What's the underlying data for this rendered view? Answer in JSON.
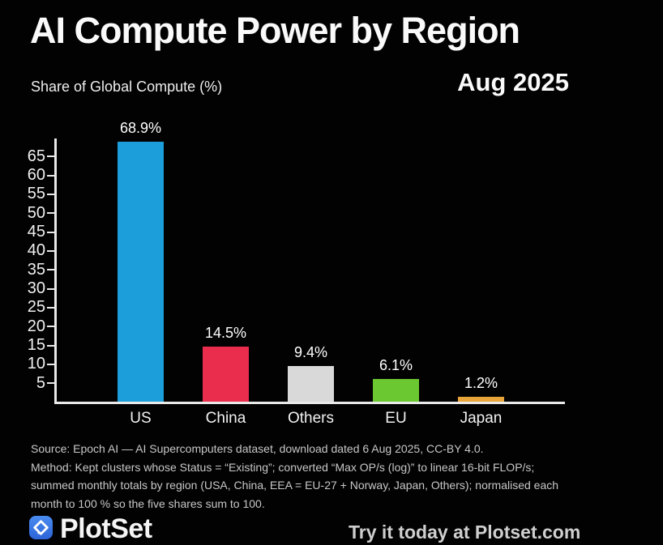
{
  "header": {
    "title": "AI Compute Power by Region",
    "subtitle": "Share of Global Compute (%)",
    "date_label": "Aug 2025"
  },
  "chart_data": {
    "type": "bar",
    "title": "AI Compute Power by Region",
    "subtitle": "Share of Global Compute (%)",
    "xlabel": "",
    "ylabel": "Share of Global Compute (%)",
    "categories": [
      "US",
      "China",
      "Others",
      "EU",
      "Japan"
    ],
    "values": [
      68.9,
      14.5,
      9.4,
      6.1,
      1.2
    ],
    "value_labels": [
      "68.9%",
      "14.5%",
      "9.4%",
      "6.1%",
      "1.2%"
    ],
    "bar_colors": [
      "#1b9ed9",
      "#ea2c4d",
      "#d9d9d9",
      "#6cc831",
      "#e8a63a"
    ],
    "ylim": [
      0,
      69.5
    ],
    "yticks": [
      5,
      10,
      15,
      20,
      25,
      30,
      35,
      40,
      45,
      50,
      55,
      60,
      65
    ],
    "grid": false,
    "legend": "none",
    "background": "#020202",
    "axis_color": "#e9e9e9"
  },
  "footer": {
    "lines": [
      "Source: Epoch AI — AI Supercomputers dataset, download dated 6 Aug 2025, CC-BY 4.0.",
      "Method: Kept clusters whose Status = “Existing”; converted “Max OP/s (log)” to linear 16-bit FLOP/s;",
      "summed monthly totals by region (USA, China, EEA = EU-27 + Norway, Japan, Others); normalised each",
      "month to 100 % so the five shares sum to 100."
    ]
  },
  "branding": {
    "logo_text": "PlotSet",
    "logo_icon": "plotset-diamond-icon",
    "logo_color": "#2d63d8",
    "tagline": "Try it today at Plotset.com"
  }
}
